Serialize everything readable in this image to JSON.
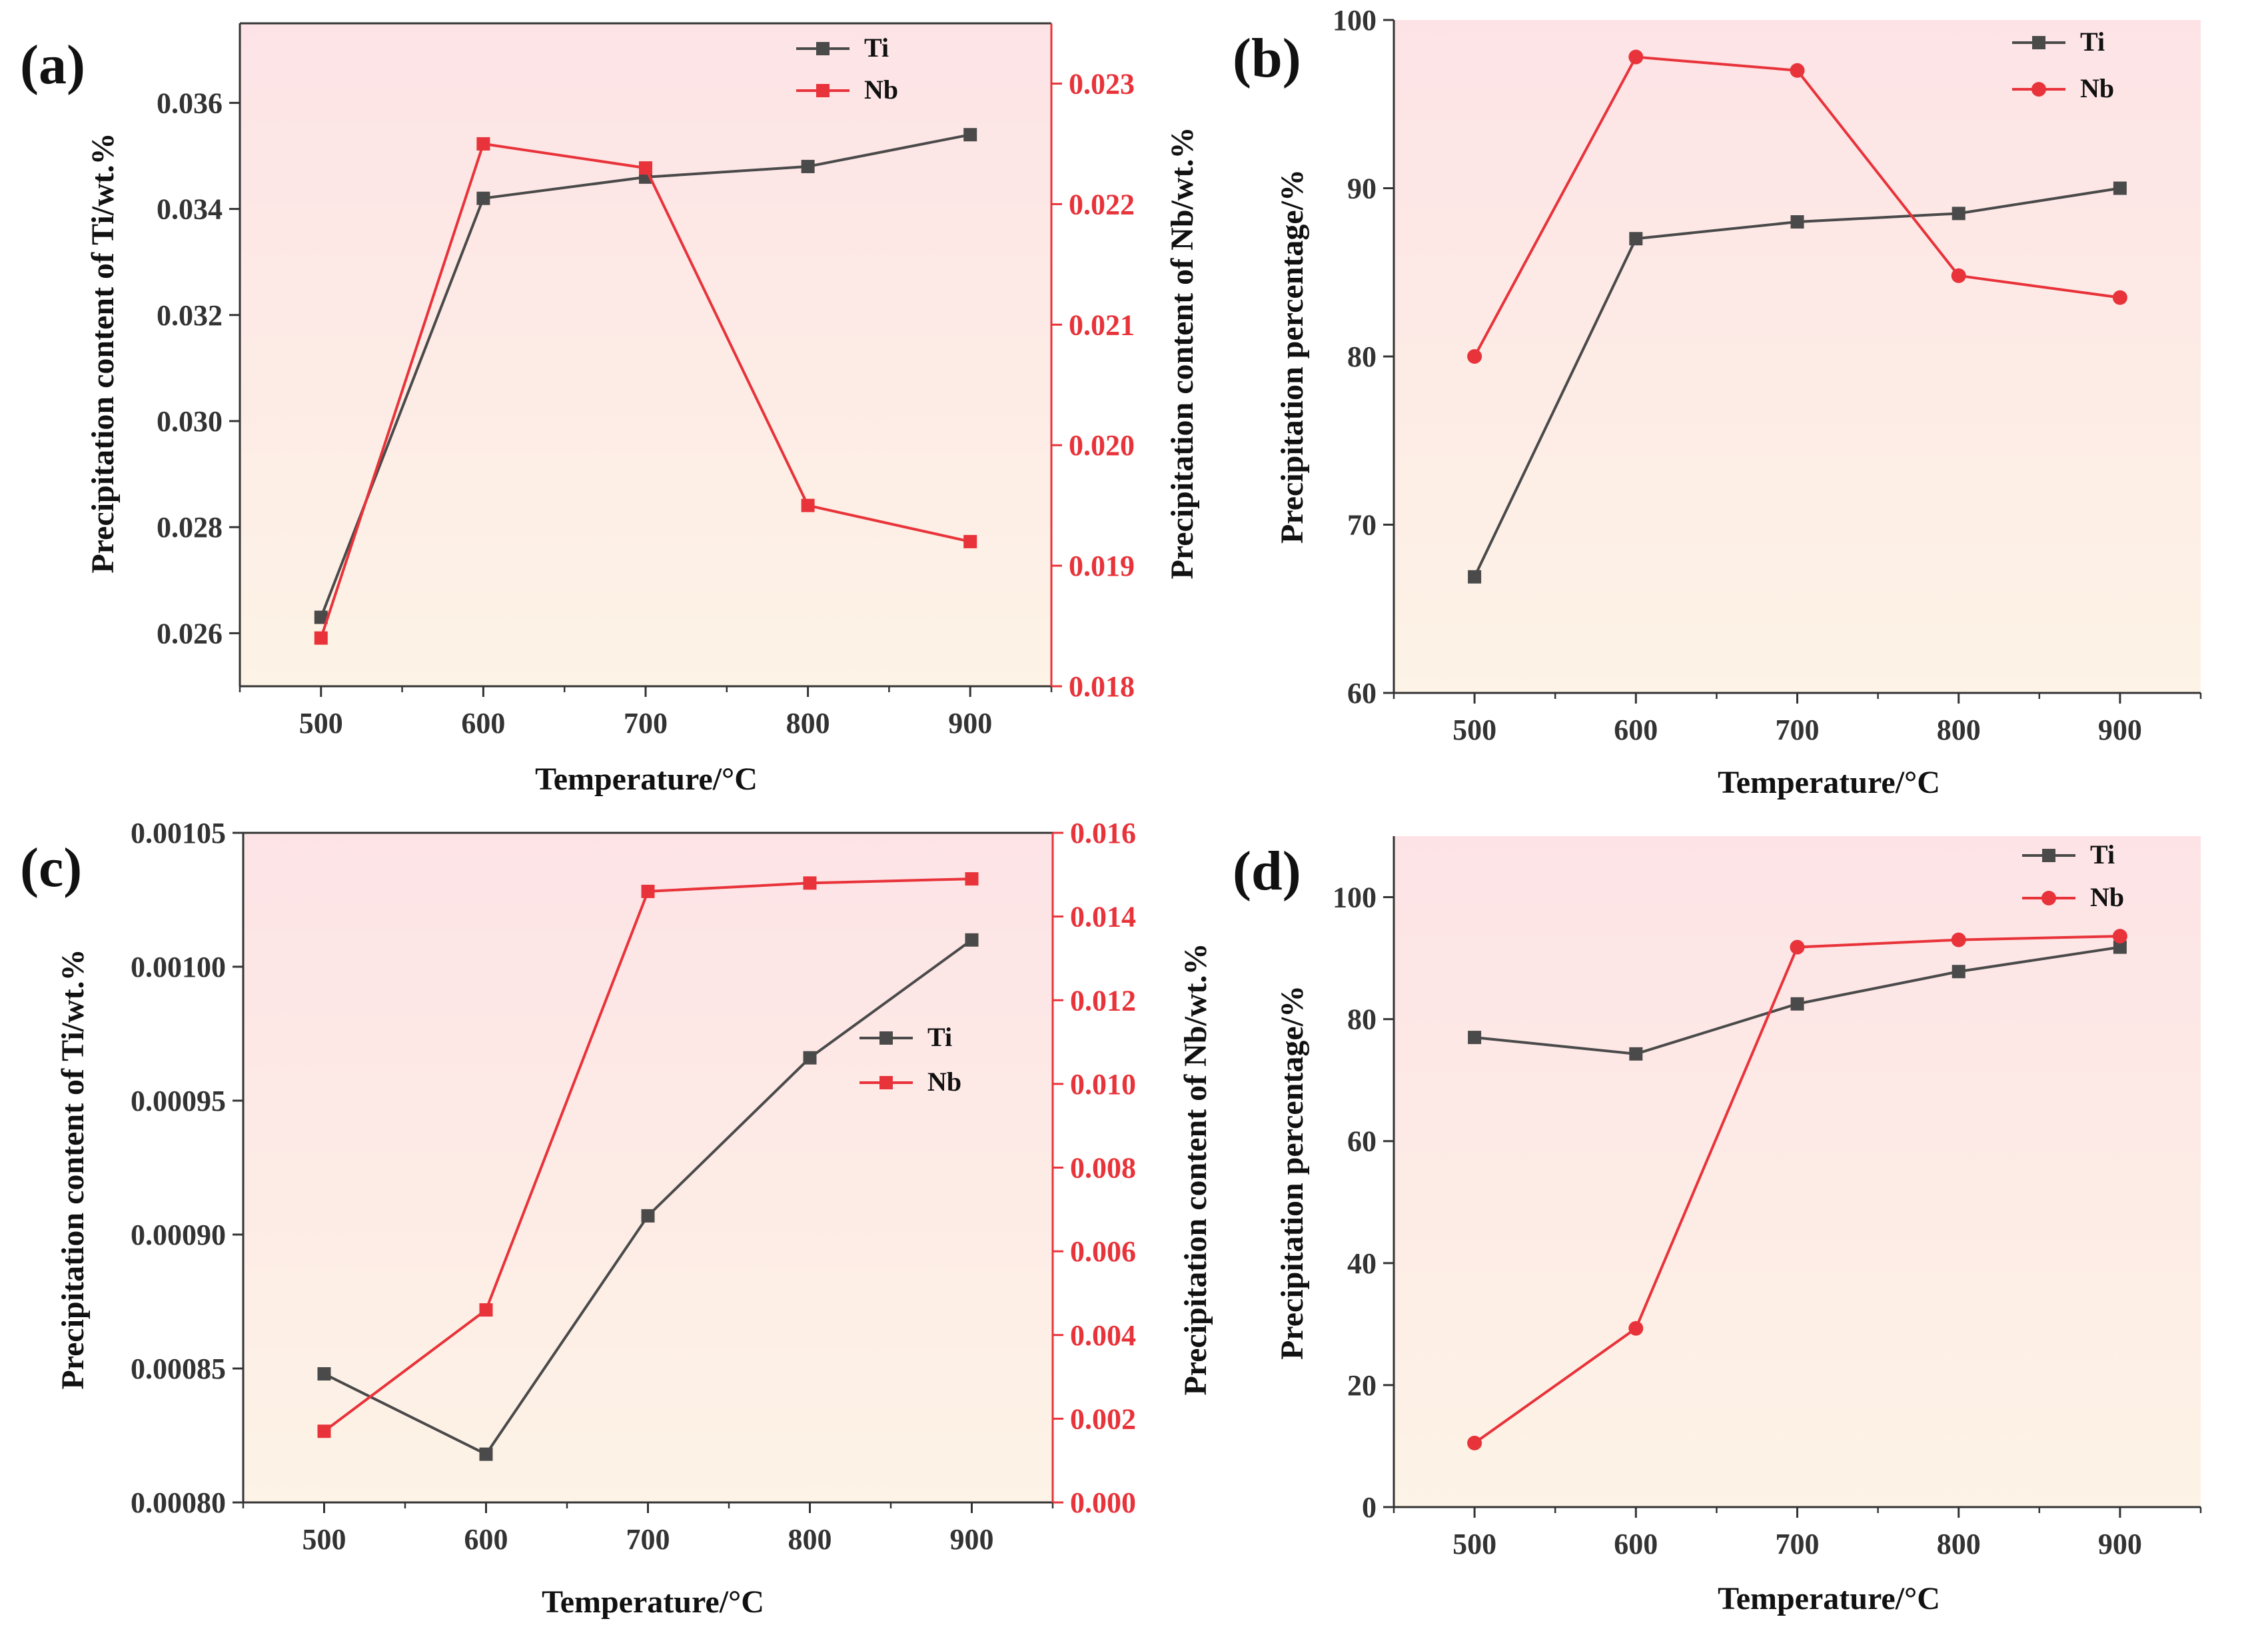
{
  "colors": {
    "ti": "#4a4a4a",
    "nb": "#e8333a",
    "bg_top": "#fde3e6",
    "bg_bottom": "#fdf3e6"
  },
  "chart_data": [
    {
      "panel": "(a)",
      "type": "line",
      "xlabel": "Temperature/°C",
      "x": [
        500,
        600,
        700,
        800,
        900
      ],
      "xlim": [
        450,
        950
      ],
      "xticks": [
        "500",
        "600",
        "700",
        "800",
        "900"
      ],
      "ylabel": "Precipitation content of Ti/wt.%",
      "ylim": [
        0.025,
        0.0375
      ],
      "yticks": [
        "0.026",
        "0.028",
        "0.030",
        "0.032",
        "0.034",
        "0.036"
      ],
      "y2label": "Precipitation content of Nb/wt.%",
      "y2lim": [
        0.018,
        0.0235
      ],
      "y2ticks": [
        "0.018",
        "0.019",
        "0.020",
        "0.021",
        "0.022",
        "0.023"
      ],
      "legend_position": "top-right",
      "series": [
        {
          "name": "Ti",
          "axis": "left",
          "marker": "square",
          "values": [
            0.0263,
            0.0342,
            0.0346,
            0.0348,
            0.0354
          ]
        },
        {
          "name": "Nb",
          "axis": "right",
          "marker": "square",
          "values": [
            0.0184,
            0.0225,
            0.0223,
            0.0195,
            0.0192
          ]
        }
      ]
    },
    {
      "panel": "(b)",
      "type": "line",
      "xlabel": "Temperature/°C",
      "x": [
        500,
        600,
        700,
        800,
        900
      ],
      "xlim": [
        450,
        950
      ],
      "xticks": [
        "500",
        "600",
        "700",
        "800",
        "900"
      ],
      "ylabel": "Precipitation percentage/%",
      "ylim": [
        60,
        100
      ],
      "yticks": [
        "60",
        "70",
        "80",
        "90",
        "100"
      ],
      "legend_position": "top-right",
      "series": [
        {
          "name": "Ti",
          "axis": "left",
          "marker": "square",
          "values": [
            66.9,
            87.0,
            88.0,
            88.5,
            90.0
          ]
        },
        {
          "name": "Nb",
          "axis": "left",
          "marker": "circle",
          "values": [
            80.0,
            97.8,
            97.0,
            84.8,
            83.5
          ]
        }
      ]
    },
    {
      "panel": "(c)",
      "type": "line",
      "xlabel": "Temperature/°C",
      "x": [
        500,
        600,
        700,
        800,
        900
      ],
      "xlim": [
        450,
        950
      ],
      "xticks": [
        "500",
        "600",
        "700",
        "800",
        "900"
      ],
      "ylabel": "Precipitation content of Ti/wt.%",
      "ylim": [
        0.0008,
        0.00105
      ],
      "yticks": [
        "0.00080",
        "0.00085",
        "0.00090",
        "0.00095",
        "0.00100",
        "0.00105"
      ],
      "y2label": "Precipitation content of Nb/wt.%",
      "y2lim": [
        0.0,
        0.016
      ],
      "y2ticks": [
        "0.000",
        "0.002",
        "0.004",
        "0.006",
        "0.008",
        "0.010",
        "0.012",
        "0.014",
        "0.016"
      ],
      "legend_position": "middle-right",
      "series": [
        {
          "name": "Ti",
          "axis": "left",
          "marker": "square",
          "values": [
            0.000848,
            0.000818,
            0.000907,
            0.000966,
            0.00101
          ]
        },
        {
          "name": "Nb",
          "axis": "right",
          "marker": "square",
          "values": [
            0.0017,
            0.0046,
            0.0146,
            0.0148,
            0.0149
          ]
        }
      ]
    },
    {
      "panel": "(d)",
      "type": "line",
      "xlabel": "Temperature/°C",
      "x": [
        500,
        600,
        700,
        800,
        900
      ],
      "xlim": [
        450,
        950
      ],
      "xticks": [
        "500",
        "600",
        "700",
        "800",
        "900"
      ],
      "ylabel": "Precipitation percentage/%",
      "ylim": [
        0,
        110
      ],
      "yticks": [
        "0",
        "20",
        "40",
        "60",
        "80",
        "100"
      ],
      "legend_position": "top-right",
      "series": [
        {
          "name": "Ti",
          "axis": "left",
          "marker": "square",
          "values": [
            77.0,
            74.3,
            82.5,
            87.8,
            91.8
          ]
        },
        {
          "name": "Nb",
          "axis": "left",
          "marker": "circle",
          "values": [
            10.5,
            29.3,
            91.8,
            93.0,
            93.6
          ]
        }
      ]
    }
  ]
}
